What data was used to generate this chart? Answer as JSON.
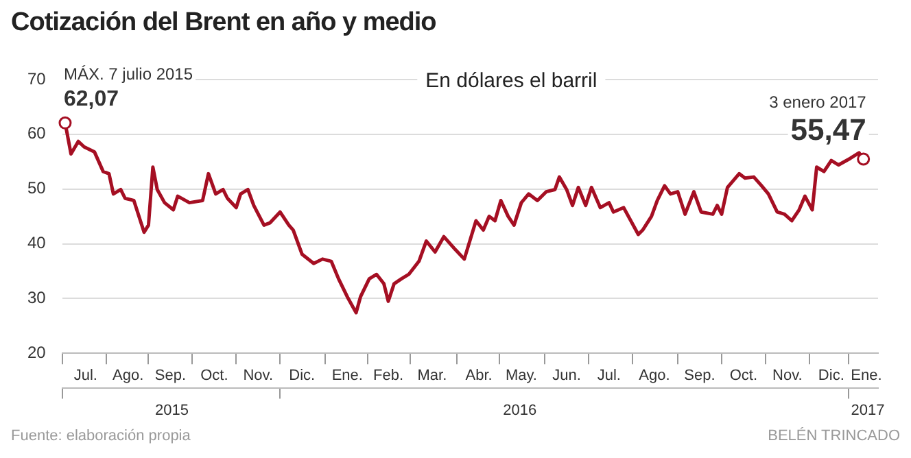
{
  "chart_data": {
    "type": "line",
    "title": "Cotización del Brent en año y medio",
    "subtitle": "En dólares el barril",
    "color": "#a50f23",
    "x": [
      "2015-07-07",
      "2015-07-11",
      "2015-07-16",
      "2015-07-20",
      "2015-07-27",
      "2015-08-02",
      "2015-08-06",
      "2015-08-09",
      "2015-08-14",
      "2015-08-17",
      "2015-08-23",
      "2015-08-30",
      "2015-09-02",
      "2015-09-05",
      "2015-09-08",
      "2015-09-13",
      "2015-09-19",
      "2015-09-22",
      "2015-09-30",
      "2015-10-09",
      "2015-10-13",
      "2015-10-18",
      "2015-10-23",
      "2015-10-26",
      "2015-11-01",
      "2015-11-04",
      "2015-11-09",
      "2015-11-13",
      "2015-11-20",
      "2015-11-24",
      "2015-12-01",
      "2015-12-07",
      "2015-12-10",
      "2015-12-16",
      "2015-12-24",
      "2015-12-30",
      "2016-01-05",
      "2016-01-10",
      "2016-01-16",
      "2016-01-22",
      "2016-01-25",
      "2016-01-31",
      "2016-02-05",
      "2016-02-10",
      "2016-02-13",
      "2016-02-17",
      "2016-02-22",
      "2016-02-27",
      "2016-03-05",
      "2016-03-10",
      "2016-03-16",
      "2016-03-22",
      "2016-03-30",
      "2016-04-05",
      "2016-04-13",
      "2016-04-18",
      "2016-04-22",
      "2016-04-26",
      "2016-04-30",
      "2016-05-05",
      "2016-05-09",
      "2016-05-14",
      "2016-05-19",
      "2016-05-25",
      "2016-05-31",
      "2016-06-06",
      "2016-06-09",
      "2016-06-14",
      "2016-06-18",
      "2016-06-22",
      "2016-06-27",
      "2016-07-01",
      "2016-07-07",
      "2016-07-13",
      "2016-07-16",
      "2016-07-23",
      "2016-08-02",
      "2016-08-05",
      "2016-08-11",
      "2016-08-15",
      "2016-08-20",
      "2016-08-24",
      "2016-08-29",
      "2016-09-03",
      "2016-09-09",
      "2016-09-14",
      "2016-09-22",
      "2016-09-25",
      "2016-09-28",
      "2016-10-02",
      "2016-10-10",
      "2016-10-14",
      "2016-10-20",
      "2016-10-25",
      "2016-10-30",
      "2016-11-05",
      "2016-11-10",
      "2016-11-15",
      "2016-11-20",
      "2016-11-24",
      "2016-11-29",
      "2016-12-02",
      "2016-12-07",
      "2016-12-12",
      "2016-12-17",
      "2016-12-25",
      "2016-12-31",
      "2017-01-03"
    ],
    "values": [
      62.07,
      56.4,
      58.7,
      57.7,
      56.8,
      53.2,
      52.8,
      49.1,
      49.9,
      48.3,
      47.9,
      42.1,
      43.4,
      54.0,
      49.9,
      47.5,
      46.2,
      48.7,
      47.5,
      47.9,
      52.8,
      49.1,
      49.9,
      48.3,
      46.6,
      49.1,
      49.9,
      47.0,
      43.4,
      43.8,
      45.8,
      43.4,
      42.5,
      38.1,
      36.4,
      37.2,
      36.8,
      33.6,
      30.3,
      27.4,
      30.3,
      33.6,
      34.4,
      32.7,
      29.5,
      32.7,
      33.6,
      34.4,
      36.8,
      40.5,
      38.5,
      41.3,
      38.9,
      37.2,
      44.2,
      42.5,
      45.0,
      44.2,
      47.9,
      45.0,
      43.4,
      47.5,
      49.1,
      47.9,
      49.5,
      49.9,
      52.2,
      49.9,
      47.0,
      50.3,
      47.0,
      50.3,
      46.6,
      47.5,
      45.8,
      46.6,
      41.7,
      42.5,
      45.0,
      47.9,
      50.6,
      49.1,
      49.5,
      45.4,
      49.5,
      45.8,
      45.4,
      47.0,
      45.4,
      50.3,
      52.8,
      52.0,
      52.2,
      50.7,
      49.1,
      45.8,
      45.4,
      44.2,
      46.2,
      48.7,
      46.2,
      54.0,
      53.2,
      55.2,
      54.4,
      55.6,
      56.6,
      55.47
    ],
    "xlim": [
      "2015-07-05",
      "2017-01-13"
    ],
    "xticks": [
      {
        "value": "2015-07-05",
        "label": null
      },
      {
        "value": "2015-07-21",
        "label": "Jul."
      },
      {
        "value": "2015-08-04",
        "label": null
      },
      {
        "value": "2015-08-19",
        "label": "Ago."
      },
      {
        "value": "2015-09-02",
        "label": null
      },
      {
        "value": "2015-09-17",
        "label": "Sep."
      },
      {
        "value": "2015-10-02",
        "label": null
      },
      {
        "value": "2015-10-17",
        "label": "Oct."
      },
      {
        "value": "2015-11-01",
        "label": null
      },
      {
        "value": "2015-11-16",
        "label": "Nov."
      },
      {
        "value": "2015-12-01",
        "label": null
      },
      {
        "value": "2015-12-16",
        "label": "Dic."
      },
      {
        "value": "2016-01-01",
        "label": null
      },
      {
        "value": "2016-01-16",
        "label": "Ene."
      },
      {
        "value": "2016-01-30",
        "label": null
      },
      {
        "value": "2016-02-13",
        "label": "Feb."
      },
      {
        "value": "2016-02-28",
        "label": null
      },
      {
        "value": "2016-03-14",
        "label": "Mar."
      },
      {
        "value": "2016-03-31",
        "label": null
      },
      {
        "value": "2016-04-15",
        "label": "Abr."
      },
      {
        "value": "2016-04-29",
        "label": null
      },
      {
        "value": "2016-05-14",
        "label": "May."
      },
      {
        "value": "2016-05-30",
        "label": null
      },
      {
        "value": "2016-06-14",
        "label": "Jun."
      },
      {
        "value": "2016-06-29",
        "label": null
      },
      {
        "value": "2016-07-13",
        "label": "Jul."
      },
      {
        "value": "2016-07-29",
        "label": null
      },
      {
        "value": "2016-08-13",
        "label": "Ago."
      },
      {
        "value": "2016-08-29",
        "label": null
      },
      {
        "value": "2016-09-13",
        "label": "Sep."
      },
      {
        "value": "2016-09-28",
        "label": null
      },
      {
        "value": "2016-10-13",
        "label": "Oct."
      },
      {
        "value": "2016-10-28",
        "label": null
      },
      {
        "value": "2016-11-12",
        "label": "Nov."
      },
      {
        "value": "2016-11-27",
        "label": null
      },
      {
        "value": "2016-12-12",
        "label": "Dic."
      },
      {
        "value": "2016-12-24",
        "label": null
      },
      {
        "value": "2017-01-05",
        "label": "Ene."
      }
    ],
    "x2lim": [
      "2015-07-05",
      "2017-01-13"
    ],
    "x2ticks": [
      {
        "value": "2015-07-05",
        "label": null
      },
      {
        "value": "2015-09-18",
        "label": "2015"
      },
      {
        "value": "2015-12-01",
        "label": null
      },
      {
        "value": "2016-05-13",
        "label": "2016"
      },
      {
        "value": "2016-12-24",
        "label": null
      },
      {
        "value": "2017-01-06",
        "label": "2017"
      }
    ],
    "ylim": [
      20,
      70
    ],
    "yticks": [
      20,
      30,
      40,
      50,
      60,
      70
    ],
    "grid": "y",
    "annotations": [
      {
        "text": "MÁX. 7 julio 2015",
        "x": "2015-07-07",
        "y": 62.07
      },
      {
        "text": "62,07",
        "x": "2015-07-07",
        "y": 62.07
      },
      {
        "text": "3 enero 2017",
        "x": "2017-01-03",
        "y": 55.47
      },
      {
        "text": "55,47",
        "x": "2017-01-03",
        "y": 55.47
      },
      "Fuente: elaboración propia",
      "BELÉN TRINCADO"
    ]
  }
}
